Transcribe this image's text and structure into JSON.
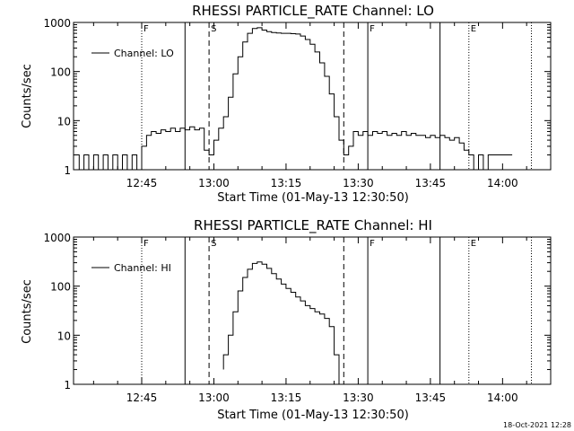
{
  "footer": {
    "timestamp": "18-Oct-2021 12:28"
  },
  "chart_data": [
    {
      "type": "line",
      "title": "RHESSI PARTICLE_RATE Channel: LO",
      "xlabel": "Start Time (01-May-13 12:30:50)",
      "ylabel": "Counts/sec",
      "xlim": [
        "12:30:50",
        "14:10:00"
      ],
      "ylim": [
        1,
        1000
      ],
      "yscale": "log",
      "xticks": [
        "12:45",
        "13:00",
        "13:15",
        "13:30",
        "13:45",
        "14:00"
      ],
      "yticks": [
        "1",
        "10",
        "100",
        "1000"
      ],
      "legend": {
        "label": "Channel: LO",
        "placement": "top-left"
      },
      "series": [
        {
          "name": "Channel: LO",
          "points": [
            [
              "12:31",
              2
            ],
            [
              "12:32",
              1
            ],
            [
              "12:33",
              2
            ],
            [
              "12:34",
              1
            ],
            [
              "12:35",
              2
            ],
            [
              "12:36",
              1
            ],
            [
              "12:37",
              2
            ],
            [
              "12:38",
              1
            ],
            [
              "12:39",
              2
            ],
            [
              "12:40",
              1
            ],
            [
              "12:41",
              2
            ],
            [
              "12:42",
              1
            ],
            [
              "12:43",
              2
            ],
            [
              "12:44",
              1
            ],
            [
              "12:45",
              3
            ],
            [
              "12:46",
              5
            ],
            [
              "12:47",
              6
            ],
            [
              "12:48",
              5.5
            ],
            [
              "12:49",
              6.5
            ],
            [
              "12:50",
              6
            ],
            [
              "12:51",
              7
            ],
            [
              "12:52",
              6
            ],
            [
              "12:53",
              7
            ],
            [
              "12:54",
              6.5
            ],
            [
              "12:55",
              7.5
            ],
            [
              "12:56",
              6.5
            ],
            [
              "12:57",
              7
            ],
            [
              "12:58",
              2.5
            ],
            [
              "12:59",
              2
            ],
            [
              "13:00",
              4
            ],
            [
              "13:01",
              7
            ],
            [
              "13:02",
              12
            ],
            [
              "13:03",
              30
            ],
            [
              "13:04",
              90
            ],
            [
              "13:05",
              200
            ],
            [
              "13:06",
              400
            ],
            [
              "13:07",
              600
            ],
            [
              "13:08",
              750
            ],
            [
              "13:09",
              780
            ],
            [
              "13:10",
              700
            ],
            [
              "13:11",
              650
            ],
            [
              "13:12",
              620
            ],
            [
              "13:13",
              610
            ],
            [
              "13:14",
              600
            ],
            [
              "13:15",
              600
            ],
            [
              "13:16",
              590
            ],
            [
              "13:17",
              580
            ],
            [
              "13:18",
              530
            ],
            [
              "13:19",
              450
            ],
            [
              "13:20",
              360
            ],
            [
              "13:21",
              250
            ],
            [
              "13:22",
              150
            ],
            [
              "13:23",
              80
            ],
            [
              "13:24",
              35
            ],
            [
              "13:25",
              12
            ],
            [
              "13:26",
              4
            ],
            [
              "13:27",
              2
            ],
            [
              "13:28",
              3
            ],
            [
              "13:29",
              6
            ],
            [
              "13:30",
              5
            ],
            [
              "13:31",
              6
            ],
            [
              "13:32",
              5
            ],
            [
              "13:33",
              6
            ],
            [
              "13:34",
              5.5
            ],
            [
              "13:35",
              6
            ],
            [
              "13:36",
              5
            ],
            [
              "13:37",
              5.5
            ],
            [
              "13:38",
              5
            ],
            [
              "13:39",
              6
            ],
            [
              "13:40",
              5
            ],
            [
              "13:41",
              5.5
            ],
            [
              "13:42",
              5
            ],
            [
              "13:43",
              5
            ],
            [
              "13:44",
              4.5
            ],
            [
              "13:45",
              5
            ],
            [
              "13:46",
              4.5
            ],
            [
              "13:47",
              5
            ],
            [
              "13:48",
              4.5
            ],
            [
              "13:49",
              4
            ],
            [
              "13:50",
              4.5
            ],
            [
              "13:51",
              3.5
            ],
            [
              "13:52",
              2.5
            ],
            [
              "13:53",
              2
            ],
            [
              "13:54",
              1
            ],
            [
              "13:55",
              2
            ],
            [
              "13:56",
              1
            ],
            [
              "13:57",
              2
            ],
            [
              "13:58",
              2
            ],
            [
              "13:59",
              2
            ],
            [
              "14:00",
              2
            ],
            [
              "14:01",
              2
            ],
            [
              "14:02",
              2
            ]
          ]
        }
      ],
      "events": [
        {
          "time": "12:45",
          "label": "F",
          "style": "dotted"
        },
        {
          "time": "12:54",
          "label": "",
          "style": "solid"
        },
        {
          "time": "12:59",
          "label": "S",
          "style": "dashed"
        },
        {
          "time": "13:27",
          "label": "",
          "style": "dashed"
        },
        {
          "time": "13:32",
          "label": "F",
          "style": "solid"
        },
        {
          "time": "13:47",
          "label": "",
          "style": "solid"
        },
        {
          "time": "13:53",
          "label": "E",
          "style": "dotted"
        },
        {
          "time": "14:06",
          "label": "",
          "style": "dotted"
        }
      ]
    },
    {
      "type": "line",
      "title": "RHESSI PARTICLE_RATE Channel: HI",
      "xlabel": "Start Time (01-May-13 12:30:50)",
      "ylabel": "Counts/sec",
      "xlim": [
        "12:30:50",
        "14:10:00"
      ],
      "ylim": [
        1,
        1000
      ],
      "yscale": "log",
      "xticks": [
        "12:45",
        "13:00",
        "13:15",
        "13:30",
        "13:45",
        "14:00"
      ],
      "yticks": [
        "1",
        "10",
        "100",
        "1000"
      ],
      "legend": {
        "label": "Channel: HI",
        "placement": "top-left"
      },
      "series": [
        {
          "name": "Channel: HI",
          "points": [
            [
              "13:02",
              2
            ],
            [
              "13:02",
              4
            ],
            [
              "13:03",
              10
            ],
            [
              "13:04",
              30
            ],
            [
              "13:05",
              80
            ],
            [
              "13:06",
              150
            ],
            [
              "13:07",
              220
            ],
            [
              "13:08",
              290
            ],
            [
              "13:09",
              310
            ],
            [
              "13:10",
              280
            ],
            [
              "13:11",
              230
            ],
            [
              "13:12",
              180
            ],
            [
              "13:13",
              140
            ],
            [
              "13:14",
              110
            ],
            [
              "13:15",
              90
            ],
            [
              "13:16",
              75
            ],
            [
              "13:17",
              60
            ],
            [
              "13:18",
              50
            ],
            [
              "13:19",
              40
            ],
            [
              "13:20",
              35
            ],
            [
              "13:21",
              30
            ],
            [
              "13:22",
              27
            ],
            [
              "13:23",
              22
            ],
            [
              "13:24",
              15
            ],
            [
              "13:25",
              8
            ],
            [
              "13:25",
              4
            ],
            [
              "13:26",
              2
            ],
            [
              "13:26",
              1
            ]
          ]
        }
      ],
      "events": [
        {
          "time": "12:45",
          "label": "F",
          "style": "dotted"
        },
        {
          "time": "12:54",
          "label": "",
          "style": "solid"
        },
        {
          "time": "12:59",
          "label": "S",
          "style": "dashed"
        },
        {
          "time": "13:27",
          "label": "",
          "style": "dashed"
        },
        {
          "time": "13:32",
          "label": "F",
          "style": "solid"
        },
        {
          "time": "13:47",
          "label": "",
          "style": "solid"
        },
        {
          "time": "13:53",
          "label": "E",
          "style": "dotted"
        },
        {
          "time": "14:06",
          "label": "",
          "style": "dotted"
        }
      ]
    }
  ]
}
